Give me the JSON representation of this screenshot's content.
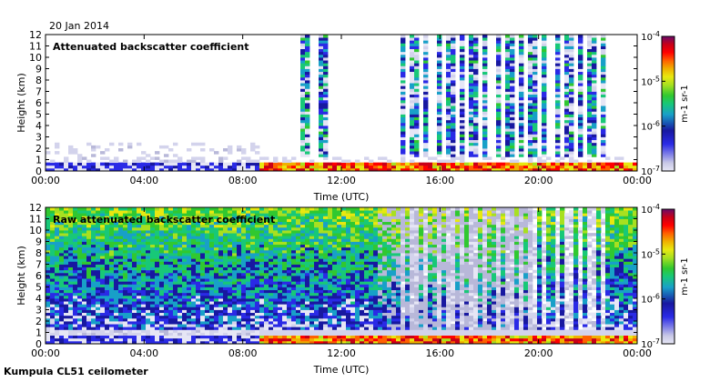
{
  "header": {
    "date": "20 Jan 2014"
  },
  "footer": {
    "station": "Kumpula CL51 ceilometer"
  },
  "colors": {
    "colormap": [
      "#b8b8d9",
      "#d3d3ec",
      "#e6e6f5",
      "#2a2ae6",
      "#1818a0",
      "#18a0c8",
      "#18c878",
      "#30c830",
      "#a8e020",
      "#e8e810",
      "#f0b000",
      "#ff6000",
      "#ff0000",
      "#c80018",
      "#900048",
      "#6a0a6a"
    ],
    "frame": "#000000"
  },
  "chart_data": [
    {
      "type": "heatmap",
      "title": "Attenuated backscatter coefficient",
      "xlabel": "Time (UTC)",
      "ylabel": "Height (km)",
      "x_tick_labels": [
        "00:00",
        "04:00",
        "08:00",
        "12:00",
        "16:00",
        "20:00",
        "00:00"
      ],
      "x_tick_hours": [
        0,
        4,
        8,
        12,
        16,
        20,
        24
      ],
      "xlim_hours": [
        0,
        24
      ],
      "ylim": [
        0,
        12
      ],
      "y_ticks": [
        0,
        1,
        2,
        3,
        4,
        5,
        6,
        7,
        8,
        9,
        10,
        11,
        12
      ],
      "colorbar": {
        "label": "m-1 sr-1",
        "scale": "log",
        "range": [
          1e-07,
          0.0001
        ],
        "tick_values": [
          0.0001,
          1e-05,
          1e-06,
          1e-07
        ],
        "tick_labels": [
          {
            "base": "10",
            "exp": "-4"
          },
          {
            "base": "10",
            "exp": "-5"
          },
          {
            "base": "10",
            "exp": "-6"
          },
          {
            "base": "10",
            "exp": "-7"
          }
        ]
      }
    },
    {
      "type": "heatmap",
      "title": "Raw attenuated backscatter coefficient",
      "xlabel": "Time (UTC)",
      "ylabel": "Height (km)",
      "x_tick_labels": [
        "00:00",
        "04:00",
        "08:00",
        "12:00",
        "16:00",
        "20:00",
        "00:00"
      ],
      "x_tick_hours": [
        0,
        4,
        8,
        12,
        16,
        20,
        24
      ],
      "xlim_hours": [
        0,
        24
      ],
      "ylim": [
        0,
        12
      ],
      "y_ticks": [
        0,
        1,
        2,
        3,
        4,
        5,
        6,
        7,
        8,
        9,
        10,
        11,
        12
      ],
      "colorbar": {
        "label": "m-1 sr-1",
        "scale": "log",
        "range": [
          1e-07,
          0.0001
        ],
        "tick_values": [
          0.0001,
          1e-05,
          1e-06,
          1e-07
        ],
        "tick_labels": [
          {
            "base": "10",
            "exp": "-4"
          },
          {
            "base": "10",
            "exp": "-5"
          },
          {
            "base": "10",
            "exp": "-6"
          },
          {
            "base": "10",
            "exp": "-7"
          }
        ]
      }
    }
  ]
}
